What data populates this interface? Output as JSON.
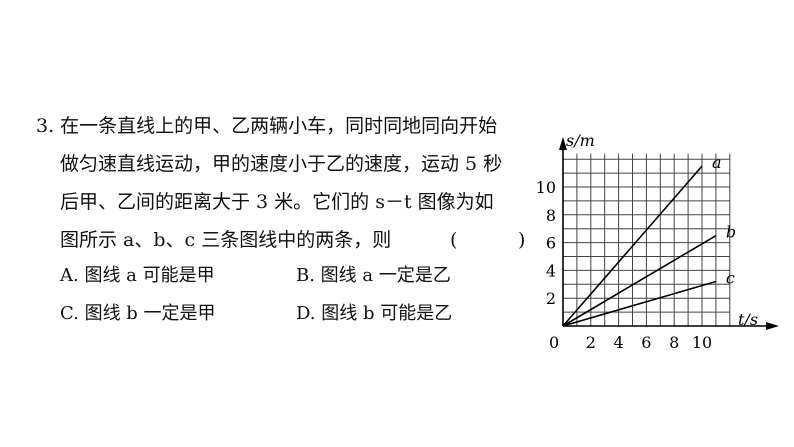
{
  "question": {
    "line1": "3. 在一条直线上的甲、乙两辆小车，同时同地同向开始",
    "line2": "做匀速直线运动，甲的速度小于乙的速度，运动 5 秒",
    "line3": "后甲、乙间的距离大于 3 米。它们的 s－t 图像为如",
    "line4": "图所示 a、b、c 三条图线中的两条，则",
    "bracket_open": "(",
    "bracket_close": ")"
  },
  "options": {
    "a": "A. 图线 a 可能是甲",
    "b": "B. 图线 a 一定是乙",
    "c": "C. 图线 b 一定是甲",
    "d": "D. 图线 b 可能是乙"
  },
  "chart_data": {
    "type": "line",
    "ylabel": "s/m",
    "xlabel": "t/s",
    "origin_label": "0",
    "xticks": [
      "2",
      "4",
      "6",
      "8",
      "10"
    ],
    "yticks": [
      "2",
      "4",
      "6",
      "8",
      "10"
    ],
    "xlim": [
      0,
      12
    ],
    "ylim": [
      0,
      10
    ],
    "grid": true,
    "series": [
      {
        "name": "a",
        "x": [
          0,
          10
        ],
        "y": [
          0,
          11.5
        ]
      },
      {
        "name": "b",
        "x": [
          0,
          11
        ],
        "y": [
          0,
          6.5
        ]
      },
      {
        "name": "c",
        "x": [
          0,
          11
        ],
        "y": [
          0,
          3.2
        ]
      }
    ]
  }
}
